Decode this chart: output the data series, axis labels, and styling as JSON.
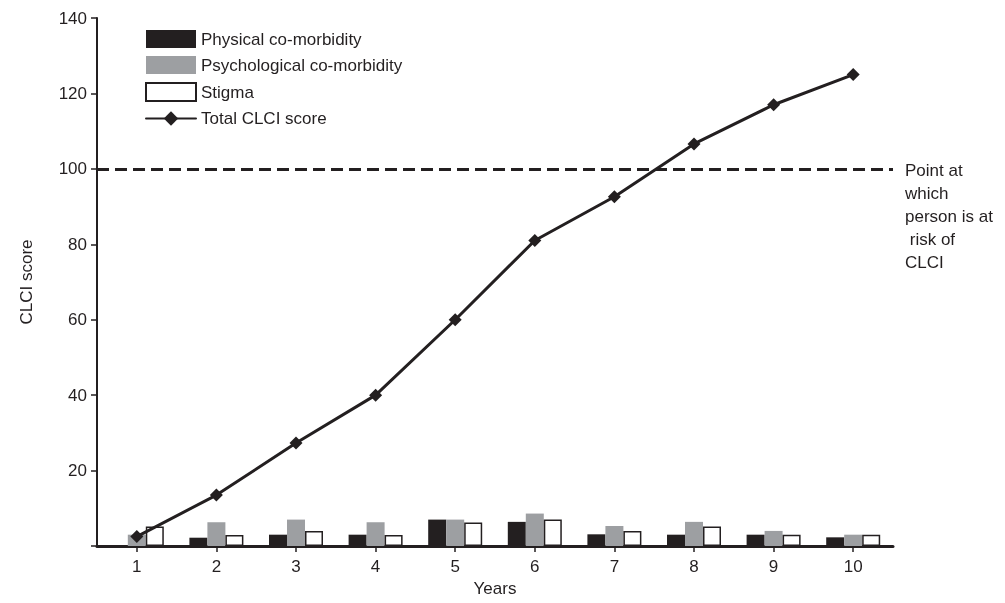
{
  "chart_data": {
    "type": "bar",
    "xlabel": "Years",
    "ylabel": "CLCI score",
    "categories": [
      "1",
      "2",
      "3",
      "4",
      "5",
      "6",
      "7",
      "8",
      "9",
      "10"
    ],
    "series": [
      {
        "name": "Physical co-morbidity",
        "color": "#231f20",
        "values": [
          0,
          2.2,
          3,
          3,
          7,
          6.4,
          3.1,
          3,
          3,
          2.3
        ]
      },
      {
        "name": "Psychological co-morbidity",
        "color": "#9d9fa2",
        "values": [
          3,
          6.3,
          7,
          6.3,
          7,
          8.6,
          5.3,
          6.4,
          4,
          3
        ]
      },
      {
        "name": "Stigma",
        "color": "#ffffff",
        "values": [
          5.2,
          2.9,
          4,
          2.9,
          6.2,
          7,
          4,
          5.2,
          3,
          3
        ]
      },
      {
        "name": "Total CLCI score",
        "type": "line",
        "color": "#231f20",
        "marker": "diamond",
        "values": [
          2.5,
          13.5,
          27.3,
          40,
          60,
          81,
          92.6,
          106.6,
          117,
          125
        ]
      }
    ],
    "ylim": [
      0,
      140
    ],
    "yticks": [
      {
        "value": 0,
        "label": null
      },
      20,
      40,
      60,
      80,
      100,
      120,
      140
    ],
    "ref_lines": [
      {
        "axis": "y",
        "value": 100,
        "label": "Point at which person is at risk of CLCI",
        "color": "#231f20",
        "line_style": "dashed"
      }
    ],
    "grid": false,
    "legend": "top left"
  }
}
